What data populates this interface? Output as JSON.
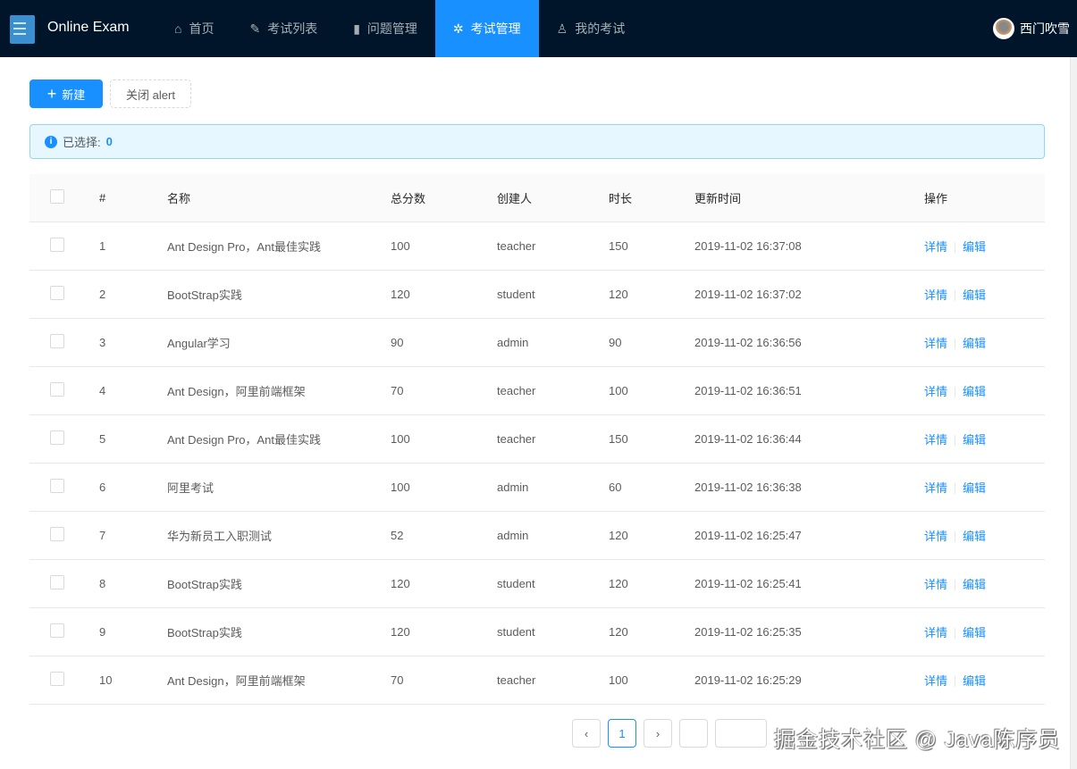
{
  "header": {
    "app_name": "Online Exam",
    "nav": [
      {
        "label": "首页",
        "icon": "home-icon"
      },
      {
        "label": "考试列表",
        "icon": "edit-icon"
      },
      {
        "label": "问题管理",
        "icon": "question-file-icon"
      },
      {
        "label": "考试管理",
        "icon": "settings-icon",
        "active": true
      },
      {
        "label": "我的考试",
        "icon": "user-icon"
      }
    ],
    "user": "西门吹雪"
  },
  "toolbar": {
    "new_label": "新建",
    "close_alert_label": "关闭 alert"
  },
  "alert": {
    "label": "已选择:",
    "count": "0"
  },
  "table": {
    "columns": [
      "#",
      "名称",
      "总分数",
      "创建人",
      "时长",
      "更新时间",
      "操作"
    ],
    "rows": [
      [
        "1",
        "Ant Design Pro，Ant最佳实践",
        "100",
        "teacher",
        "150",
        "2019-11-02 16:37:08"
      ],
      [
        "2",
        "BootStrap实践",
        "120",
        "student",
        "120",
        "2019-11-02 16:37:02"
      ],
      [
        "3",
        "Angular学习",
        "90",
        "admin",
        "90",
        "2019-11-02 16:36:56"
      ],
      [
        "4",
        "Ant Design，阿里前端框架",
        "70",
        "teacher",
        "100",
        "2019-11-02 16:36:51"
      ],
      [
        "5",
        "Ant Design Pro，Ant最佳实践",
        "100",
        "teacher",
        "150",
        "2019-11-02 16:36:44"
      ],
      [
        "6",
        "阿里考试",
        "100",
        "admin",
        "60",
        "2019-11-02 16:36:38"
      ],
      [
        "7",
        "华为新员工入职测试",
        "52",
        "admin",
        "120",
        "2019-11-02 16:25:47"
      ],
      [
        "8",
        "BootStrap实践",
        "120",
        "student",
        "120",
        "2019-11-02 16:25:41"
      ],
      [
        "9",
        "BootStrap实践",
        "120",
        "student",
        "120",
        "2019-11-02 16:25:35"
      ],
      [
        "10",
        "Ant Design，阿里前端框架",
        "70",
        "teacher",
        "100",
        "2019-11-02 16:25:29"
      ]
    ],
    "actions": {
      "detail": "详情",
      "edit": "编辑"
    }
  },
  "pagination": {
    "current": "1"
  },
  "watermark": "掘金技术社区 @ Java陈序员",
  "colors": {
    "header_bg": "#001529",
    "primary": "#1890ff"
  }
}
